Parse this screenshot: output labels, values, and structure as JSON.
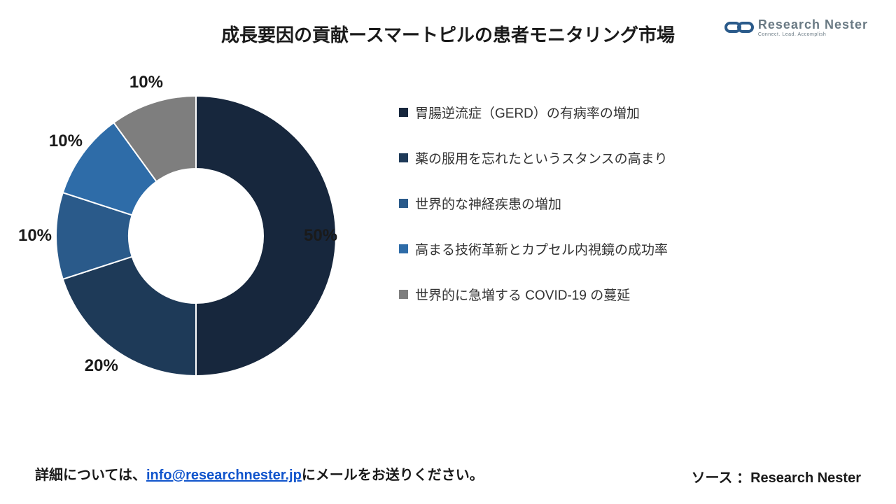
{
  "title": "成長要因の貢献ースマートピルの患者モニタリング市場",
  "logo": {
    "main": "Research Nester",
    "sub": "Connect. Lead. Accomplish",
    "icon_stroke": "#2a5a8a",
    "text_color": "#6a7a84"
  },
  "chart": {
    "type": "donut",
    "inner_radius_ratio": 0.48,
    "start_angle_deg": 0,
    "background_color": "#ffffff",
    "label_fontsize": 24,
    "label_color": "#1a1a1a",
    "label_fontweight": 600,
    "slices": [
      {
        "label": "50%",
        "value": 50,
        "color": "#17273d"
      },
      {
        "label": "20%",
        "value": 20,
        "color": "#1e3a58"
      },
      {
        "label": "10%",
        "value": 10,
        "color": "#2a5a8a"
      },
      {
        "label": "10%",
        "value": 10,
        "color": "#2e6ca8"
      },
      {
        "label": "10%",
        "value": 10,
        "color": "#7e7e7e"
      }
    ]
  },
  "legend": {
    "fontsize": 19,
    "swatch_size": 13,
    "items": [
      {
        "label": "胃腸逆流症（GERD）の有病率の増加",
        "color": "#17273d"
      },
      {
        "label": "薬の服用を忘れたというスタンスの高まり",
        "color": "#1e3a58"
      },
      {
        "label": "世界的な神経疾患の増加",
        "color": "#2a5a8a"
      },
      {
        "label": "高まる技術革新とカプセル内視鏡の成功率",
        "color": "#2e6ca8"
      },
      {
        "label": "世界的に急増する COVID-19 の蔓延",
        "color": "#7e7e7e"
      }
    ]
  },
  "footer": {
    "contact_pre": "詳細については、",
    "contact_email": "info@researchnester.jp",
    "contact_post": "にメールをお送りください。",
    "source": "ソース ：Research Nester"
  }
}
